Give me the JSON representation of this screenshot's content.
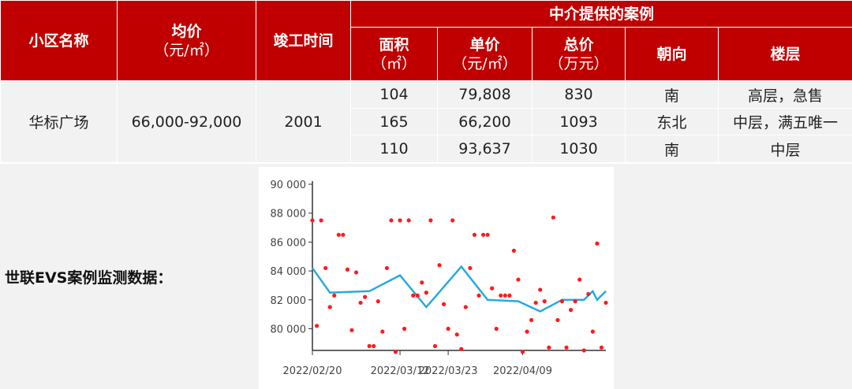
{
  "table": {
    "group_header": "中介提供的案例",
    "headers": {
      "community": "小区名称",
      "avg_price": "均价",
      "avg_price_unit": "（元/㎡）",
      "completion": "竣工时间",
      "area": "面积",
      "area_unit": "（㎡）",
      "unit_price": "单价",
      "unit_price_unit": "（元/㎡）",
      "total_price": "总价",
      "total_price_unit": "（万元）",
      "orientation": "朝向",
      "floor": "楼层"
    },
    "community": "华标广场",
    "avg_price": "66,000-92,000",
    "completion": "2001",
    "rows": [
      {
        "area": "104",
        "unit_price": "79,808",
        "total_price": "830",
        "orientation": "南",
        "floor": "高层，急售"
      },
      {
        "area": "165",
        "unit_price": "66,200",
        "total_price": "1093",
        "orientation": "东北",
        "floor": "中层，满五唯一"
      },
      {
        "area": "110",
        "unit_price": "93,637",
        "total_price": "1030",
        "orientation": "南",
        "floor": "中层"
      }
    ]
  },
  "monitor_label": "世联EVS案例监测数据：",
  "colors": {
    "header_bg": "#c00000",
    "cell_bg": "#f2f2f2",
    "points": "#ff1a1a",
    "line": "#29a9e0"
  },
  "chart_data": {
    "type": "scatter",
    "ylim": [
      78500,
      90000
    ],
    "yticks": [
      80000,
      82000,
      84000,
      86000,
      88000,
      90000
    ],
    "ytick_labels": [
      "80 000",
      "82 000",
      "84 000",
      "86 000",
      "88 000",
      "90 000"
    ],
    "xticks": [
      "2022/02/20",
      "2022/03/12",
      "2022/03/23",
      "2022/04/09"
    ],
    "xlim": [
      "2022/02/20",
      "2022/04/28"
    ],
    "scatter_points": [
      {
        "x": "2022/02/20",
        "y": 87500
      },
      {
        "x": "2022/02/21",
        "y": 80200
      },
      {
        "x": "2022/02/22",
        "y": 87500
      },
      {
        "x": "2022/02/23",
        "y": 84200
      },
      {
        "x": "2022/02/24",
        "y": 81500
      },
      {
        "x": "2022/02/25",
        "y": 82300
      },
      {
        "x": "2022/02/26",
        "y": 86500
      },
      {
        "x": "2022/02/27",
        "y": 86500
      },
      {
        "x": "2022/02/28",
        "y": 84100
      },
      {
        "x": "2022/03/01",
        "y": 79900
      },
      {
        "x": "2022/03/02",
        "y": 83900
      },
      {
        "x": "2022/03/03",
        "y": 81800
      },
      {
        "x": "2022/03/04",
        "y": 82200
      },
      {
        "x": "2022/03/05",
        "y": 78800
      },
      {
        "x": "2022/03/06",
        "y": 78800
      },
      {
        "x": "2022/03/07",
        "y": 81900
      },
      {
        "x": "2022/03/08",
        "y": 79800
      },
      {
        "x": "2022/03/09",
        "y": 84200
      },
      {
        "x": "2022/03/10",
        "y": 87500
      },
      {
        "x": "2022/03/11",
        "y": 78400
      },
      {
        "x": "2022/03/12",
        "y": 87500
      },
      {
        "x": "2022/03/13",
        "y": 80000
      },
      {
        "x": "2022/03/14",
        "y": 87500
      },
      {
        "x": "2022/03/15",
        "y": 82300
      },
      {
        "x": "2022/03/16",
        "y": 82300
      },
      {
        "x": "2022/03/17",
        "y": 83200
      },
      {
        "x": "2022/03/18",
        "y": 82500
      },
      {
        "x": "2022/03/19",
        "y": 87500
      },
      {
        "x": "2022/03/20",
        "y": 78800
      },
      {
        "x": "2022/03/21",
        "y": 84400
      },
      {
        "x": "2022/03/22",
        "y": 81700
      },
      {
        "x": "2022/03/23",
        "y": 80000
      },
      {
        "x": "2022/03/24",
        "y": 87500
      },
      {
        "x": "2022/03/25",
        "y": 79600
      },
      {
        "x": "2022/03/26",
        "y": 78600
      },
      {
        "x": "2022/03/27",
        "y": 81500
      },
      {
        "x": "2022/03/28",
        "y": 84200
      },
      {
        "x": "2022/03/29",
        "y": 86500
      },
      {
        "x": "2022/03/30",
        "y": 82300
      },
      {
        "x": "2022/03/31",
        "y": 86500
      },
      {
        "x": "2022/04/01",
        "y": 86500
      },
      {
        "x": "2022/04/02",
        "y": 82800
      },
      {
        "x": "2022/04/03",
        "y": 80000
      },
      {
        "x": "2022/04/04",
        "y": 82300
      },
      {
        "x": "2022/04/05",
        "y": 82300
      },
      {
        "x": "2022/04/06",
        "y": 82300
      },
      {
        "x": "2022/04/07",
        "y": 85400
      },
      {
        "x": "2022/04/08",
        "y": 83400
      },
      {
        "x": "2022/04/09",
        "y": 78400
      },
      {
        "x": "2022/04/10",
        "y": 79800
      },
      {
        "x": "2022/04/11",
        "y": 80600
      },
      {
        "x": "2022/04/12",
        "y": 81800
      },
      {
        "x": "2022/04/13",
        "y": 82700
      },
      {
        "x": "2022/04/14",
        "y": 81900
      },
      {
        "x": "2022/04/15",
        "y": 78700
      },
      {
        "x": "2022/04/16",
        "y": 87700
      },
      {
        "x": "2022/04/17",
        "y": 80600
      },
      {
        "x": "2022/04/18",
        "y": 81900
      },
      {
        "x": "2022/04/19",
        "y": 78700
      },
      {
        "x": "2022/04/20",
        "y": 81300
      },
      {
        "x": "2022/04/21",
        "y": 81900
      },
      {
        "x": "2022/04/22",
        "y": 83400
      },
      {
        "x": "2022/04/23",
        "y": 78500
      },
      {
        "x": "2022/04/24",
        "y": 82400
      },
      {
        "x": "2022/04/25",
        "y": 79800
      },
      {
        "x": "2022/04/26",
        "y": 85900
      },
      {
        "x": "2022/04/27",
        "y": 78700
      },
      {
        "x": "2022/04/28",
        "y": 81800
      }
    ],
    "trend_line": [
      {
        "x": "2022/02/20",
        "y": 84200
      },
      {
        "x": "2022/02/24",
        "y": 82500
      },
      {
        "x": "2022/03/05",
        "y": 82600
      },
      {
        "x": "2022/03/12",
        "y": 83700
      },
      {
        "x": "2022/03/18",
        "y": 81500
      },
      {
        "x": "2022/03/26",
        "y": 84300
      },
      {
        "x": "2022/04/01",
        "y": 82000
      },
      {
        "x": "2022/04/08",
        "y": 81900
      },
      {
        "x": "2022/04/13",
        "y": 81200
      },
      {
        "x": "2022/04/18",
        "y": 82000
      },
      {
        "x": "2022/04/23",
        "y": 82000
      },
      {
        "x": "2022/04/25",
        "y": 82600
      },
      {
        "x": "2022/04/26",
        "y": 82000
      },
      {
        "x": "2022/04/28",
        "y": 82600
      }
    ]
  }
}
